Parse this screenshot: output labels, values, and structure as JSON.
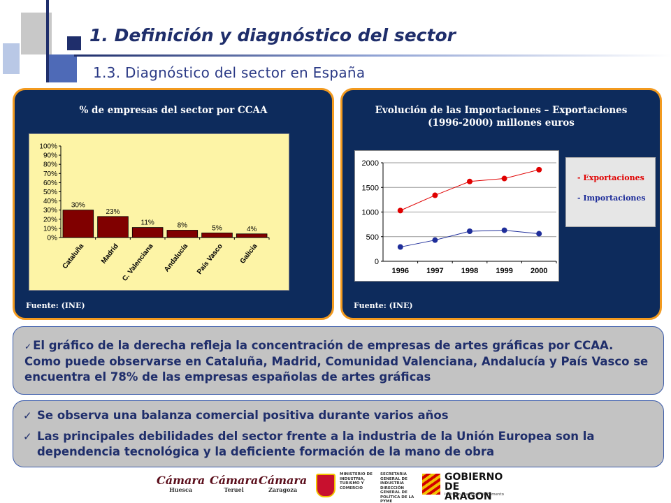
{
  "header": {
    "title": "1.  Definición y diagnóstico del sector",
    "subtitle": "1.3. Diagnóstico del sector en España"
  },
  "panels": {
    "left": {
      "title": "% de empresas del sector por CCAA",
      "source": "Fuente: (INE)"
    },
    "right": {
      "title": "Evolución de las Importaciones – Exportaciones (1996-2000) millones euros",
      "source": "Fuente: (INE)"
    }
  },
  "chart_data": [
    {
      "type": "bar",
      "title": "% de empresas del sector por CCAA",
      "categories": [
        "Cataluña",
        "Madrid",
        "C. Valenciana",
        "Andalucía",
        "País Vasco",
        "Galicia"
      ],
      "values": [
        30,
        23,
        11,
        8,
        5,
        4
      ],
      "data_labels": [
        "30%",
        "23%",
        "11%",
        "8%",
        "5%",
        "4%"
      ],
      "ylim": [
        0,
        100
      ],
      "yticks": [
        "0%",
        "10%",
        "20%",
        "30%",
        "40%",
        "50%",
        "60%",
        "70%",
        "80%",
        "90%",
        "100%"
      ],
      "bar_color": "#800000",
      "background": "#fdf4a6",
      "grid": false
    },
    {
      "type": "line",
      "title": "Evolución de las Importaciones – Exportaciones (1996-2000) millones euros",
      "x": [
        "1996",
        "1997",
        "1998",
        "1999",
        "2000"
      ],
      "ylim": [
        0,
        2000
      ],
      "yticks": [
        "0",
        "500",
        "1000",
        "1500",
        "2000"
      ],
      "series": [
        {
          "name": "- Exportaciones",
          "values": [
            1030,
            1340,
            1620,
            1680,
            1860
          ],
          "color": "#e00000"
        },
        {
          "name": "- Importaciones",
          "values": [
            290,
            430,
            610,
            630,
            560
          ],
          "color": "#1f2e9a"
        }
      ],
      "grid": true,
      "legend_position": "right"
    }
  ],
  "notes": {
    "box1": "El gráfico de la derecha refleja la concentración de empresas de artes gráficas por CCAA. Como puede observarse en Cataluña, Madrid, Comunidad Valenciana, Andalucía y País Vasco se encuentra el 78% de las empresas españolas de artes gráficas",
    "box2_items": [
      "Se observa una balanza comercial positiva durante varios años",
      "Las principales debilidades del sector frente a la industria de la Unión Europea son la dependencia tecnológica y la deficiente formación de la mano de obra"
    ]
  },
  "footer": {
    "camara_logos": [
      {
        "name": "Cámara",
        "city": "Huesca"
      },
      {
        "name": "Cámara",
        "city": "Teruel"
      },
      {
        "name": "Cámara",
        "city": "Zaragoza"
      }
    ],
    "ministerio_lines_1": "MINISTERIO DE INDUSTRIA, TURISMO Y COMERCIO",
    "ministerio_lines_2": "SECRETARIA GENERAL DE INDUSTRIA DIRECCIÓN GENERAL DE POLÍTICA DE LA PYME",
    "aragon_title": "GOBIERNO DE ARAGON",
    "aragon_sub": "Instituto Aragonés de Fomento"
  }
}
